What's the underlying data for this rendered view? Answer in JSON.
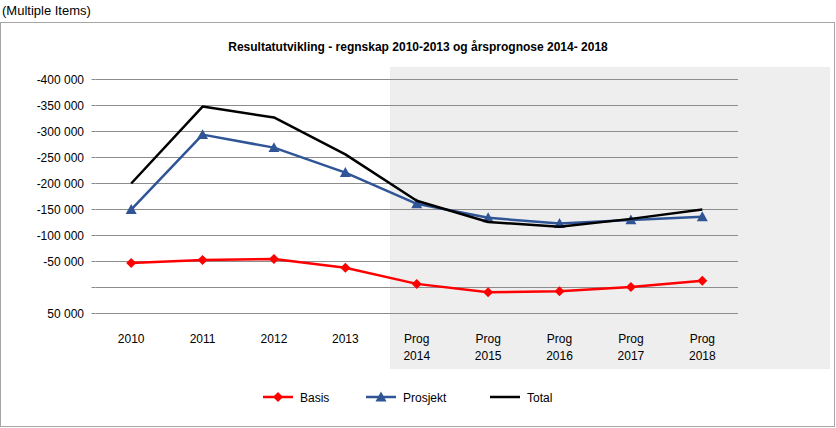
{
  "filter_label": "(Multiple Items)",
  "chart_data": {
    "type": "line",
    "title": "Resultatutvikling  -  regnskap  2010-2013 og årsprognose  2014- 2018",
    "categories": [
      "2010",
      "2011",
      "2012",
      "2013",
      "Prog 2014",
      "Prog 2015",
      "Prog 2016",
      "Prog 2017",
      "Prog 2018"
    ],
    "series": [
      {
        "name": "Basis",
        "color": "#ff0000",
        "marker": "diamond",
        "line_style": "solid",
        "values": [
          -46000,
          -52000,
          -54000,
          -37000,
          -6000,
          10000,
          8000,
          0,
          -12000
        ]
      },
      {
        "name": "Prosjekt",
        "color": "#2f5597",
        "marker": "triangle",
        "line_style": "solid",
        "values": [
          -149000,
          -293000,
          -268000,
          -220000,
          -160000,
          -133000,
          -122000,
          -129000,
          -135000
        ]
      },
      {
        "name": "Total",
        "color": "#000000",
        "marker": "none",
        "line_style": "solid",
        "values": [
          -199000,
          -347000,
          -326000,
          -255000,
          -166000,
          -125000,
          -116000,
          -131000,
          -149000
        ]
      }
    ],
    "ylim": [
      50000,
      -400000
    ],
    "yticks": [
      {
        "value": -400000,
        "label": "-400 000"
      },
      {
        "value": -350000,
        "label": "-350 000"
      },
      {
        "value": -300000,
        "label": "-300 000"
      },
      {
        "value": -250000,
        "label": "-250 000"
      },
      {
        "value": -200000,
        "label": "-200 000"
      },
      {
        "value": -150000,
        "label": "-150 000"
      },
      {
        "value": -100000,
        "label": "-100 000"
      },
      {
        "value": -50000,
        "label": "-50 000"
      },
      {
        "value": 0,
        "label": null
      },
      {
        "value": 50000,
        "label": "50 000"
      }
    ],
    "grid": true,
    "legend": "bottom"
  }
}
